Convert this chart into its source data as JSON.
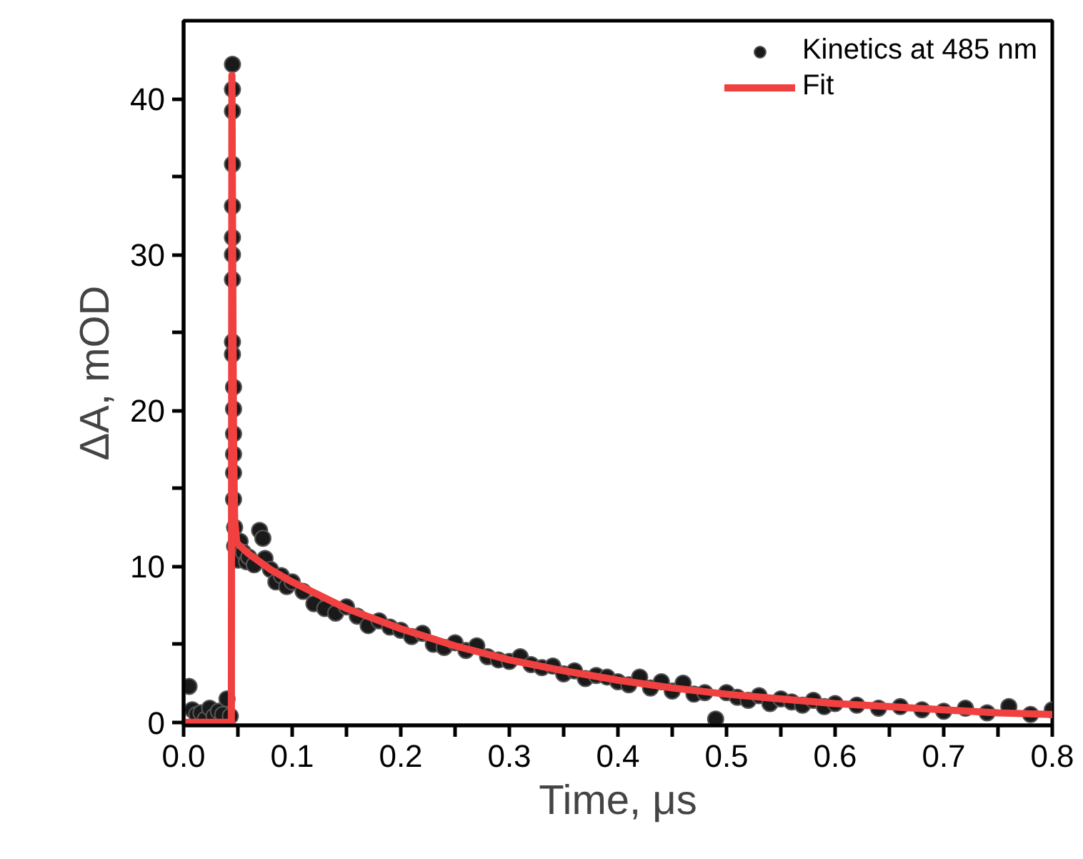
{
  "chart_data": {
    "type": "scatter",
    "xlabel": "Time, μs",
    "ylabel": "ΔA, mOD",
    "xlim": [
      0,
      0.8
    ],
    "ylim": [
      -0.2,
      45
    ],
    "xticks": [
      {
        "value": 0,
        "label": "0.0"
      },
      {
        "value": 0.05,
        "label": null
      },
      0.1,
      {
        "value": 0.15,
        "label": null
      },
      0.2,
      {
        "value": 0.25,
        "label": null
      },
      0.3,
      {
        "value": 0.35,
        "label": null
      },
      0.4,
      {
        "value": 0.45,
        "label": null
      },
      0.5,
      {
        "value": 0.55,
        "label": null
      },
      0.6,
      {
        "value": 0.65,
        "label": null
      },
      0.7,
      {
        "value": 0.75,
        "label": null
      },
      0.8
    ],
    "yticks": [
      0,
      {
        "value": 5,
        "label": null
      },
      10,
      {
        "value": 15,
        "label": null
      },
      20,
      {
        "value": 25,
        "label": null
      },
      30,
      {
        "value": 35,
        "label": null
      },
      40
    ],
    "legend": "top right",
    "grid": false,
    "series": [
      {
        "name": "Kinetics at 485 nm",
        "marker": "circle",
        "color": "#1a1a1a",
        "x": [
          0.005,
          0.008,
          0.012,
          0.016,
          0.02,
          0.024,
          0.028,
          0.032,
          0.036,
          0.04,
          0.043,
          0.045,
          0.045,
          0.045,
          0.045,
          0.045,
          0.045,
          0.045,
          0.045,
          0.045,
          0.045,
          0.046,
          0.046,
          0.046,
          0.046,
          0.046,
          0.046,
          0.047,
          0.047,
          0.05,
          0.052,
          0.055,
          0.058,
          0.06,
          0.065,
          0.07,
          0.073,
          0.075,
          0.08,
          0.085,
          0.09,
          0.095,
          0.1,
          0.11,
          0.12,
          0.13,
          0.14,
          0.15,
          0.16,
          0.17,
          0.18,
          0.19,
          0.2,
          0.21,
          0.22,
          0.23,
          0.24,
          0.25,
          0.26,
          0.27,
          0.28,
          0.29,
          0.3,
          0.31,
          0.32,
          0.33,
          0.34,
          0.35,
          0.36,
          0.37,
          0.38,
          0.39,
          0.4,
          0.41,
          0.42,
          0.43,
          0.44,
          0.45,
          0.46,
          0.47,
          0.48,
          0.49,
          0.5,
          0.51,
          0.52,
          0.53,
          0.54,
          0.55,
          0.56,
          0.57,
          0.58,
          0.59,
          0.6,
          0.62,
          0.64,
          0.66,
          0.68,
          0.7,
          0.72,
          0.74,
          0.76,
          0.78,
          0.8
        ],
        "values": [
          2.3,
          0.8,
          0.5,
          0.6,
          0.2,
          0.9,
          0.4,
          0.7,
          0.5,
          1.5,
          0.4,
          42.2,
          40.6,
          39.2,
          35.8,
          33.1,
          31.1,
          30.0,
          28.4,
          24.4,
          23.6,
          21.5,
          20.1,
          18.5,
          17.2,
          16.0,
          14.3,
          12.5,
          11.3,
          10.4,
          11.6,
          10.9,
          10.3,
          10.6,
          10.1,
          12.3,
          11.8,
          10.5,
          9.8,
          9.0,
          9.4,
          8.7,
          9.0,
          8.4,
          7.6,
          7.3,
          7.0,
          7.4,
          6.8,
          6.2,
          6.5,
          6.1,
          5.9,
          5.5,
          5.7,
          5.0,
          4.8,
          5.1,
          4.6,
          4.9,
          4.2,
          4.0,
          3.9,
          4.2,
          3.7,
          3.5,
          3.6,
          3.1,
          3.3,
          2.8,
          3.0,
          2.9,
          2.6,
          2.4,
          2.9,
          2.2,
          2.6,
          2.0,
          2.5,
          1.8,
          1.9,
          0.2,
          1.9,
          1.6,
          1.4,
          1.7,
          1.2,
          1.5,
          1.3,
          1.1,
          1.4,
          1.0,
          1.2,
          1.1,
          0.9,
          1.0,
          0.8,
          0.7,
          0.9,
          0.6,
          1.0,
          0.5,
          0.8
        ]
      },
      {
        "name": "Fit",
        "type": "line",
        "color": "#f04040",
        "x": [
          0,
          0.044,
          0.0445,
          0.0455,
          0.046,
          0.047,
          0.049,
          0.06,
          0.08,
          0.1,
          0.15,
          0.2,
          0.25,
          0.3,
          0.35,
          0.4,
          0.45,
          0.5,
          0.55,
          0.6,
          0.65,
          0.7,
          0.75,
          0.8
        ],
        "values": [
          0,
          0,
          41.5,
          25,
          18,
          13,
          11.5,
          10.8,
          9.8,
          9.0,
          7.3,
          6.0,
          4.9,
          4.0,
          3.3,
          2.7,
          2.2,
          1.8,
          1.5,
          1.2,
          1.0,
          0.8,
          0.6,
          0.5
        ]
      }
    ]
  }
}
